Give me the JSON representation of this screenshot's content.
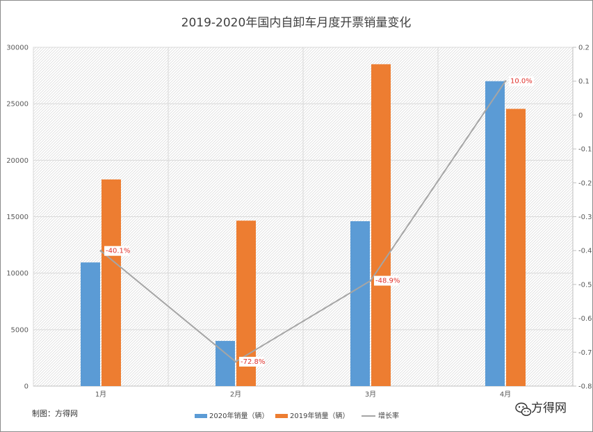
{
  "chart_data": {
    "type": "bar",
    "title": "2019-2020年国内自卸车月度开票销量变化",
    "categories": [
      "1月",
      "2月",
      "3月",
      "4月"
    ],
    "series": [
      {
        "name": "2020年销量（辆）",
        "type": "bar",
        "axis": "left",
        "color": "#5b9bd5",
        "values": [
          10950,
          4000,
          14600,
          27000
        ]
      },
      {
        "name": "2019年销量（辆）",
        "type": "bar",
        "axis": "left",
        "color": "#ed7d31",
        "values": [
          18300,
          14650,
          28500,
          24550
        ]
      },
      {
        "name": "增长率",
        "type": "line",
        "axis": "right",
        "color": "#a5a5a5",
        "values": [
          -0.401,
          -0.728,
          -0.489,
          0.1
        ],
        "labels": [
          "-40.1%",
          "-72.8%",
          "-48.9%",
          "10.0%"
        ]
      }
    ],
    "ylim_left": [
      0,
      30000
    ],
    "yticks_left": [
      "0",
      "5000",
      "10000",
      "15000",
      "20000",
      "25000",
      "30000"
    ],
    "ylim_right": [
      -0.8,
      0.2
    ],
    "yticks_right": [
      "-0.8",
      "-0.7",
      "-0.6",
      "-0.5",
      "-0.4",
      "-0.3",
      "-0.2",
      "-0.1",
      "0",
      "0.1",
      "0.2"
    ],
    "grid": true,
    "legend_position": "bottom"
  },
  "credit": "制图：方得网",
  "watermark": {
    "icon": "wechat-icon",
    "text": "方得网"
  }
}
